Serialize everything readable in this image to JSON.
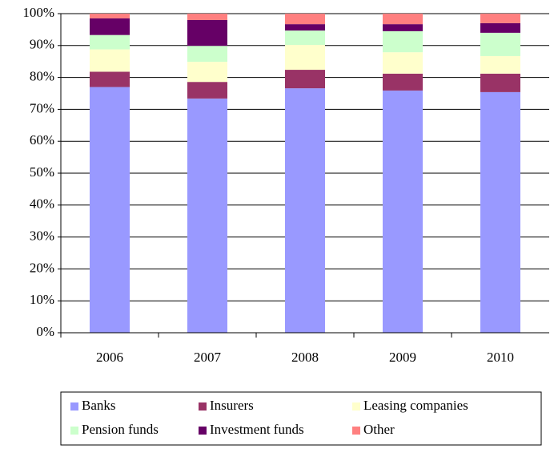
{
  "chart_data": {
    "type": "stacked_bar",
    "categories": [
      "2006",
      "2007",
      "2008",
      "2009",
      "2010"
    ],
    "series": [
      {
        "name": "Banks",
        "color": "#9999ff",
        "values": [
          77,
          73.4,
          76.6,
          75.9,
          75.4
        ]
      },
      {
        "name": "Insurers",
        "color": "#993366",
        "values": [
          4.8,
          5.2,
          5.8,
          5.3,
          5.8
        ]
      },
      {
        "name": "Leasing companies",
        "color": "#ffffcc",
        "values": [
          7,
          6.3,
          7.8,
          6.7,
          5.5
        ]
      },
      {
        "name": "Pension funds",
        "color": "#ccffcc",
        "values": [
          4.5,
          5,
          4.5,
          6.6,
          7.3
        ]
      },
      {
        "name": "Investment funds",
        "color": "#660066",
        "values": [
          5.2,
          8.1,
          2,
          2.2,
          3
        ]
      },
      {
        "name": "Other",
        "color": "#ff8080",
        "values": [
          1.5,
          2,
          3.3,
          3.3,
          3
        ]
      }
    ],
    "ylim": [
      0,
      100
    ],
    "yticks": [
      {
        "value": 0,
        "label": "0%"
      },
      {
        "value": 10,
        "label": "10%"
      },
      {
        "value": 20,
        "label": "20%"
      },
      {
        "value": 30,
        "label": "30%"
      },
      {
        "value": 40,
        "label": "40%"
      },
      {
        "value": 50,
        "label": "50%"
      },
      {
        "value": 60,
        "label": "60%"
      },
      {
        "value": 70,
        "label": "70%"
      },
      {
        "value": 80,
        "label": "80%"
      },
      {
        "value": 90,
        "label": "90%"
      },
      {
        "value": 100,
        "label": "100%"
      }
    ],
    "grid": true,
    "legend": "bottom"
  }
}
